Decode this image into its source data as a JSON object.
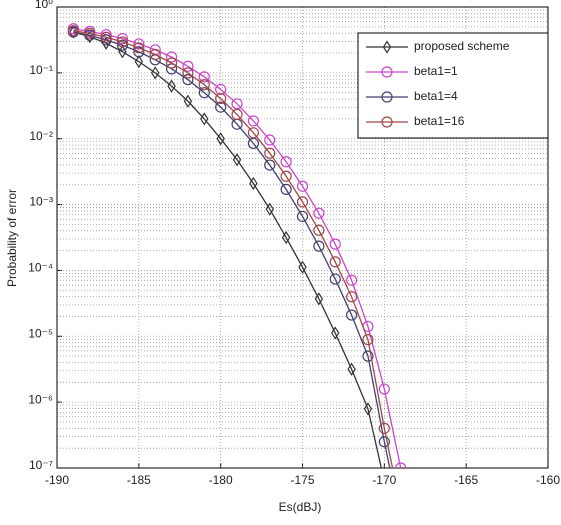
{
  "chart_data": {
    "type": "line",
    "xlabel": "Es(dBJ)",
    "ylabel": "Probability of error",
    "xlim": [
      -190,
      -160
    ],
    "xticks": [
      -190,
      -185,
      -180,
      -175,
      -170,
      -165,
      -160
    ],
    "ylim": [
      1e-07,
      1
    ],
    "log_y": true,
    "yticks": [
      {
        "value": 1e-07,
        "label": "10⁻⁷"
      },
      {
        "value": 1e-06,
        "label": "10⁻⁶"
      },
      {
        "value": 1e-05,
        "label": "10⁻⁵"
      },
      {
        "value": 0.0001,
        "label": "10⁻⁴"
      },
      {
        "value": 0.001,
        "label": "10⁻³"
      },
      {
        "value": 0.01,
        "label": "10⁻²"
      },
      {
        "value": 0.1,
        "label": "10⁻¹"
      },
      {
        "value": 1,
        "label": "10⁰"
      }
    ],
    "grid": true,
    "minor_grid": true,
    "legend": "upper right",
    "series": [
      {
        "name": "proposed scheme",
        "color": "#333333",
        "marker": "diamond",
        "x": [
          -189,
          -188,
          -187,
          -186,
          -185,
          -184,
          -183,
          -182,
          -181,
          -180,
          -179,
          -178,
          -177,
          -176,
          -175,
          -174,
          -173,
          -172,
          -171,
          -170
        ],
        "values": [
          0.417,
          0.355,
          0.282,
          0.209,
          0.148,
          0.1,
          0.063,
          0.0372,
          0.02,
          0.01,
          0.00479,
          0.00209,
          0.000851,
          0.000316,
          0.000112,
          3.7e-05,
          1.12e-05,
          3.16e-06,
          7.9e-07,
          6.3e-08
        ]
      },
      {
        "name": "beta1=1",
        "color": "#cc44cc",
        "marker": "circle",
        "x": [
          -189,
          -188,
          -187,
          -186,
          -185,
          -184,
          -183,
          -182,
          -181,
          -180,
          -179,
          -178,
          -177,
          -176,
          -175,
          -174,
          -173,
          -172,
          -171,
          -170,
          -169
        ],
        "values": [
          0.468,
          0.427,
          0.38,
          0.331,
          0.275,
          0.224,
          0.174,
          0.126,
          0.087,
          0.056,
          0.0339,
          0.0186,
          0.00955,
          0.00447,
          0.0019,
          0.00074,
          0.000251,
          7.1e-05,
          1.41e-05,
          1.58e-06,
          1e-07
        ]
      },
      {
        "name": "beta1=4",
        "color": "#404070",
        "marker": "circle",
        "x": [
          -189,
          -188,
          -187,
          -186,
          -185,
          -184,
          -183,
          -182,
          -181,
          -180,
          -179,
          -178,
          -177,
          -176,
          -175,
          -174,
          -173,
          -172,
          -171,
          -170,
          -169
        ],
        "values": [
          0.417,
          0.372,
          0.316,
          0.263,
          0.209,
          0.158,
          0.115,
          0.079,
          0.05,
          0.0302,
          0.0166,
          0.0085,
          0.00398,
          0.0017,
          0.00066,
          0.000234,
          7.4e-05,
          2.1e-05,
          5e-06,
          2.5e-07,
          1.6e-08
        ]
      },
      {
        "name": "beta1=16",
        "color": "#a04848",
        "marker": "circle",
        "x": [
          -189,
          -188,
          -187,
          -186,
          -185,
          -184,
          -183,
          -182,
          -181,
          -180,
          -179,
          -178,
          -177,
          -176,
          -175,
          -174,
          -173,
          -172,
          -171,
          -170,
          -169
        ],
        "values": [
          0.437,
          0.398,
          0.347,
          0.295,
          0.24,
          0.19,
          0.141,
          0.1,
          0.066,
          0.0407,
          0.0234,
          0.0123,
          0.00603,
          0.00269,
          0.0011,
          0.000407,
          0.000135,
          3.98e-05,
          8.9e-06,
          4e-07,
          2.5e-08
        ]
      }
    ]
  }
}
